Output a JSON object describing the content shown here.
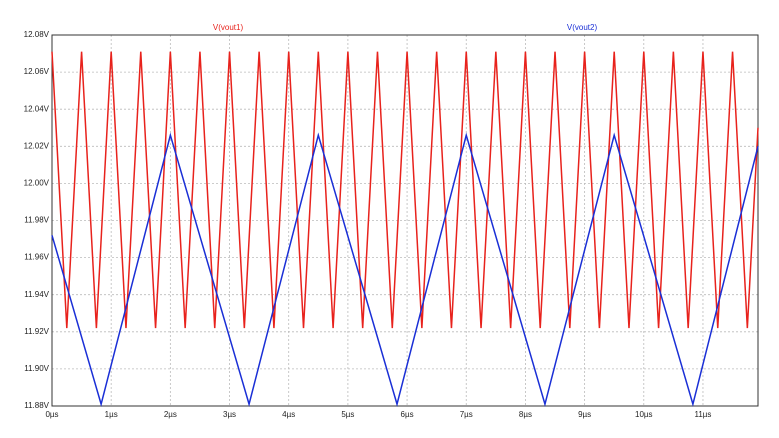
{
  "chart_data": {
    "type": "line",
    "xlim": [
      0,
      11.93
    ],
    "ylim": [
      11.88,
      12.08
    ],
    "xticks": [
      {
        "value": 0,
        "label": "0µs"
      },
      {
        "value": 1,
        "label": "1µs"
      },
      {
        "value": 2,
        "label": "2µs"
      },
      {
        "value": 3,
        "label": "3µs"
      },
      {
        "value": 4,
        "label": "4µs"
      },
      {
        "value": 5,
        "label": "5µs"
      },
      {
        "value": 6,
        "label": "6µs"
      },
      {
        "value": 7,
        "label": "7µs"
      },
      {
        "value": 8,
        "label": "8µs"
      },
      {
        "value": 9,
        "label": "9µs"
      },
      {
        "value": 10,
        "label": "10µs"
      },
      {
        "value": 11,
        "label": "11µs"
      }
    ],
    "yticks": [
      {
        "value": 11.88,
        "label": "11.88V"
      },
      {
        "value": 11.9,
        "label": "11.90V"
      },
      {
        "value": 11.92,
        "label": "11.92V"
      },
      {
        "value": 11.94,
        "label": "11.94V"
      },
      {
        "value": 11.96,
        "label": "11.96V"
      },
      {
        "value": 11.98,
        "label": "11.98V"
      },
      {
        "value": 12.0,
        "label": "12.00V"
      },
      {
        "value": 12.02,
        "label": "12.02V"
      },
      {
        "value": 12.04,
        "label": "12.04V"
      },
      {
        "value": 12.06,
        "label": "12.06V"
      },
      {
        "value": 12.08,
        "label": "12.08V"
      }
    ],
    "grid": true,
    "series": [
      {
        "name": "V(vout1)",
        "color": "#e8221c",
        "x": [
          0,
          0.25,
          0.5,
          0.75,
          1,
          1.25,
          1.5,
          1.75,
          2,
          2.25,
          2.5,
          2.75,
          3,
          3.25,
          3.5,
          3.75,
          4,
          4.25,
          4.5,
          4.75,
          5,
          5.25,
          5.5,
          5.75,
          6,
          6.25,
          6.5,
          6.75,
          7,
          7.25,
          7.5,
          7.75,
          8,
          8.25,
          8.5,
          8.75,
          9,
          9.25,
          9.5,
          9.75,
          10,
          10.25,
          10.5,
          10.75,
          11,
          11.25,
          11.5,
          11.75,
          11.93
        ],
        "values": [
          12.071,
          11.922,
          12.071,
          11.922,
          12.071,
          11.922,
          12.071,
          11.922,
          12.071,
          11.922,
          12.071,
          11.922,
          12.071,
          11.922,
          12.071,
          11.922,
          12.071,
          11.922,
          12.071,
          11.922,
          12.071,
          11.922,
          12.071,
          11.922,
          12.071,
          11.922,
          12.071,
          11.922,
          12.071,
          11.922,
          12.071,
          11.922,
          12.071,
          11.922,
          12.071,
          11.922,
          12.071,
          11.922,
          12.071,
          11.922,
          12.071,
          11.922,
          12.071,
          11.922,
          12.071,
          11.922,
          12.071,
          11.922,
          12.03
        ]
      },
      {
        "name": "V(vout2)",
        "color": "#1a2fd6",
        "x": [
          0,
          0.83,
          2.0,
          3.33,
          4.5,
          5.83,
          7.0,
          8.33,
          9.5,
          10.83,
          11.93
        ],
        "values": [
          11.972,
          11.881,
          12.026,
          11.881,
          12.026,
          11.881,
          12.026,
          11.881,
          12.026,
          11.881,
          12.02
        ]
      }
    ]
  }
}
